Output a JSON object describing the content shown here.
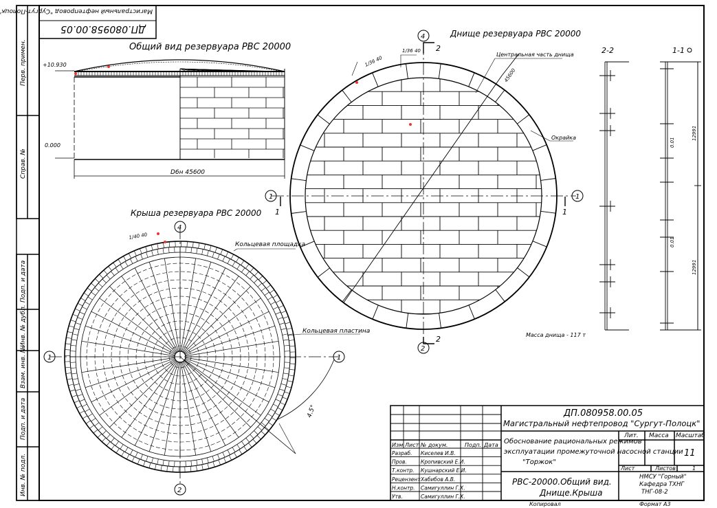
{
  "titles": {
    "general_view": "Общий вид резервуара РВС 20000",
    "bottom": "Днище резервуара РВС 20000",
    "roof": "Крыша резервуара РВС 20000",
    "section_22": "2-2",
    "section_11": "1-1"
  },
  "marks": {
    "elev_top": "+10.930",
    "elev_zero": "0.000",
    "diameter": "D6н 45600",
    "bottom_center": "Центральная часть днища",
    "bottom_rim": "Окрайка",
    "roof_platform": "Кольцевая площадка",
    "roof_plate": "Кольцевая пластина",
    "slope_bottom": "1/36 40",
    "slope_roof": "1/40 40",
    "dim_diag": "45600",
    "angle": "4.5°",
    "mass": "Масса днища - 117 т",
    "axis_1": "1",
    "axis_2": "2",
    "axis_4": "4",
    "sec_dim_1": "12991",
    "sec_dim_2": "12991",
    "sec_dim_3": "0.01",
    "sec_dim_4": "0.01"
  },
  "stamp_rotated": {
    "code": "ДП.080958.00.05",
    "title": "Магистральный нефтепровод \"Сургут-Полоцк\""
  },
  "left_strip": [
    "Перв. примен.",
    "Справ. №",
    "Подп. и дата",
    "Инв. № дубл.",
    "Взам. инв. №",
    "Подп. и дата",
    "Инв. № подл."
  ],
  "title_block": {
    "code": "ДП.080958.00.05",
    "project": "Магистральный нефтепровод \"Сургут-Полоцк\"",
    "topic": "Обоснование рациональных режимов эксплуатации промежуточной насосной станции \"Торжок\"",
    "drawing": "РВС-20000.Общий вид. Днище.Крыша",
    "col_headers": [
      "Изм",
      "Лист",
      "№ докум.",
      "Подп.",
      "Дата"
    ],
    "staff": [
      {
        "role": "Разраб.",
        "name": "Киселев И.В."
      },
      {
        "role": "Пров.",
        "name": "Кропивский Е.И."
      },
      {
        "role": "Т.контр.",
        "name": "Кушнарский Е.И."
      },
      {
        "role": "Рецензент",
        "name": "Хабибов А.В."
      },
      {
        "role": "Н.контр.",
        "name": "Самигуллин Г.Х."
      },
      {
        "role": "Утв.",
        "name": "Самигуллин Г.Х."
      }
    ],
    "lit_label": "Лит.",
    "mass_label": "Масса",
    "scale_label": "Масштаб",
    "scale_value": "11",
    "sheet_label": "Лист",
    "sheets_label": "Листов",
    "sheets_value": "1",
    "org_1": "НМСУ \"Горный\"",
    "org_2": "Кафедра ТХНГ",
    "org_3": "ТНГ-08-2",
    "copied": "Копировал",
    "format": "Формат  А3"
  }
}
